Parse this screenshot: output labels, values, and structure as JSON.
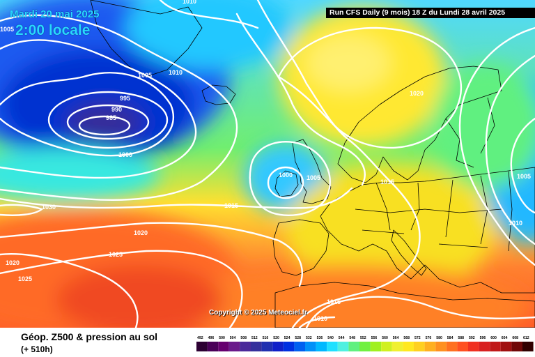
{
  "map": {
    "valid_date": "Mardi 20 mai 2025",
    "local_time": "2:00 locale",
    "run_info": "Run CFS Daily (9 mois) 18 Z du Lundi 28 avril 2025",
    "copyright": "Copyright © 2025 Meteociel.fr",
    "product": "Géop. Z500 & pression au sol",
    "lead_time": "(+ 510h)",
    "pressure_labels": [
      "1010",
      "1005",
      "1005",
      "1010",
      "995",
      "990",
      "985",
      "1000",
      "1000",
      "1005",
      "1020",
      "1015",
      "1030",
      "1015",
      "1020",
      "1025",
      "1020",
      "1025",
      "1005",
      "1010",
      "1015",
      "1010"
    ],
    "color_scale": {
      "values": [
        "492",
        "496",
        "500",
        "504",
        "508",
        "512",
        "516",
        "520",
        "524",
        "528",
        "532",
        "536",
        "540",
        "544",
        "548",
        "552",
        "556",
        "560",
        "564",
        "568",
        "572",
        "576",
        "580",
        "584",
        "588",
        "592",
        "596",
        "600",
        "604",
        "608",
        "612"
      ],
      "colors": [
        "#2d0033",
        "#4a0058",
        "#66006f",
        "#6a1a8a",
        "#4a2a9a",
        "#35309c",
        "#2030b0",
        "#1020c8",
        "#0030e0",
        "#0060f0",
        "#0090f8",
        "#00b8ff",
        "#20e0ff",
        "#50f0e0",
        "#60f080",
        "#70f040",
        "#a0f020",
        "#d0f020",
        "#f0f030",
        "#ffe820",
        "#ffd020",
        "#ffb020",
        "#ff9020",
        "#ff7020",
        "#ff5020",
        "#f03020",
        "#d82020",
        "#c01818",
        "#a01010",
        "#700808",
        "#300000"
      ]
    }
  }
}
